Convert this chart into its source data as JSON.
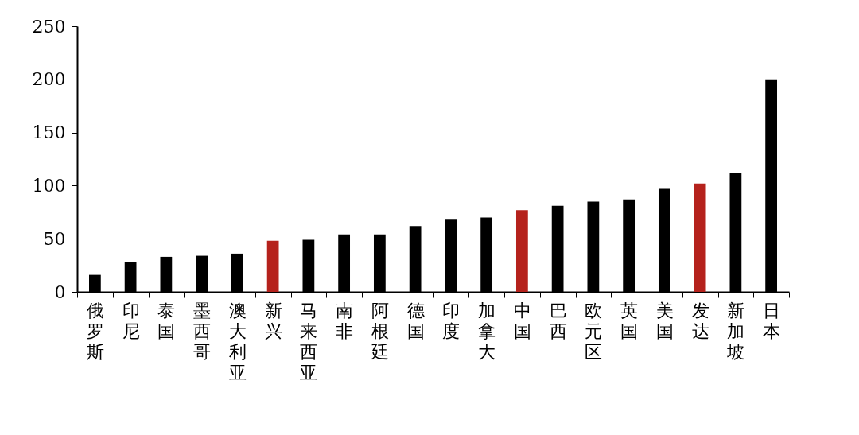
{
  "chart_data": {
    "type": "bar",
    "categories": [
      "俄罗斯",
      "印尼",
      "泰国",
      "墨西哥",
      "澳大利亚",
      "新兴",
      "马来西亚",
      "南非",
      "阿根廷",
      "德国",
      "印度",
      "加拿大",
      "中国",
      "巴西",
      "欧元区",
      "英国",
      "美国",
      "发达",
      "新加坡",
      "日本"
    ],
    "values": [
      16,
      28,
      33,
      34,
      36,
      48,
      49,
      54,
      54,
      62,
      68,
      70,
      77,
      81,
      85,
      87,
      97,
      102,
      112,
      200
    ],
    "colors": [
      "#000000",
      "#000000",
      "#000000",
      "#000000",
      "#000000",
      "#b5221c",
      "#000000",
      "#000000",
      "#000000",
      "#000000",
      "#000000",
      "#000000",
      "#b5221c",
      "#000000",
      "#000000",
      "#000000",
      "#000000",
      "#b5221c",
      "#000000",
      "#000000"
    ],
    "ylim": [
      0,
      250
    ],
    "yticks": [
      0,
      50,
      100,
      150,
      200,
      250
    ],
    "grid": false
  }
}
